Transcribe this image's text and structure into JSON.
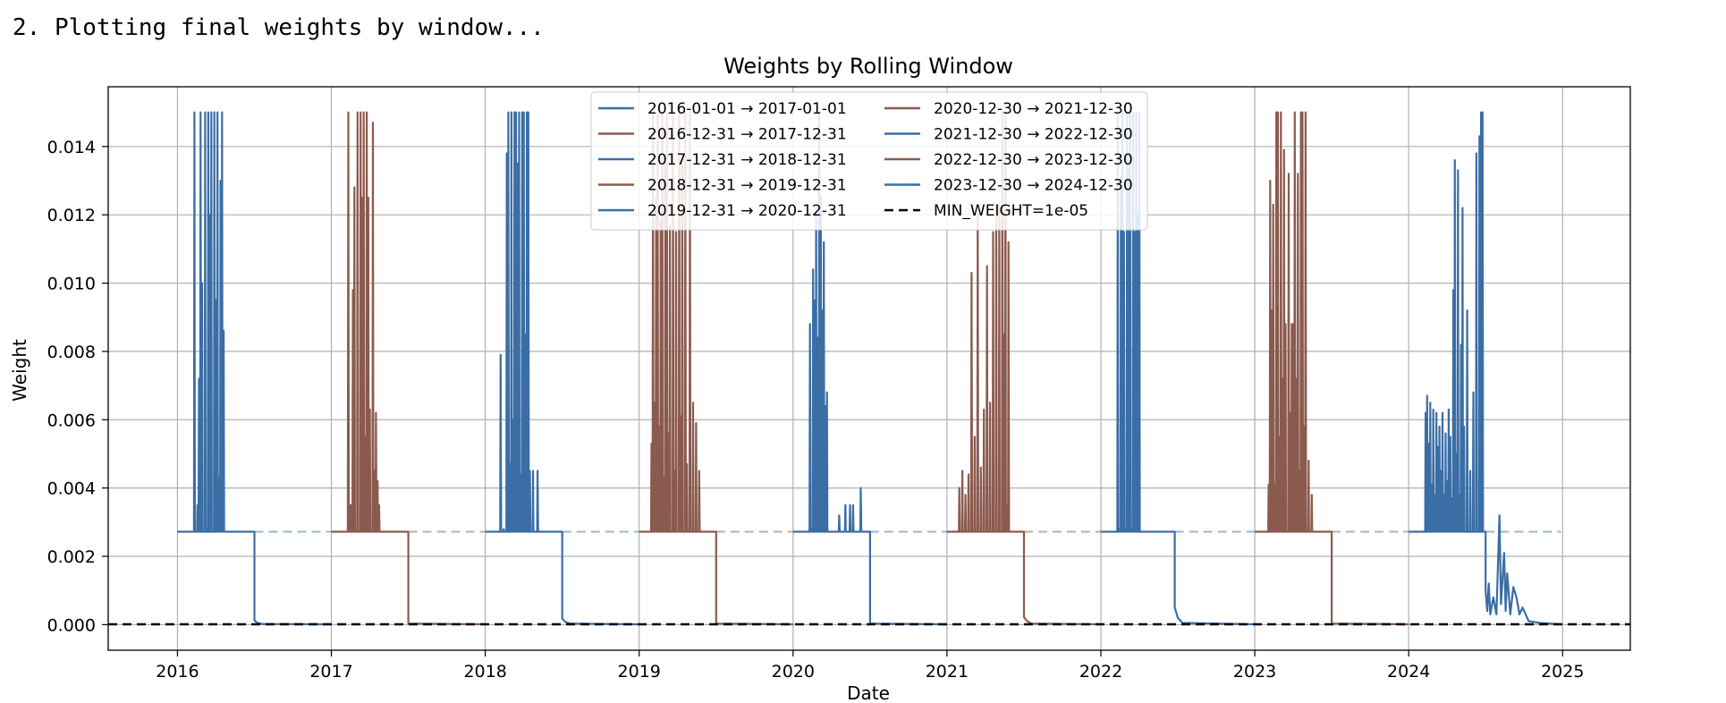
{
  "console": {
    "line": "2. Plotting final weights by window..."
  },
  "colors": {
    "blue": "#3a6ea5",
    "brown": "#8b5a4e",
    "min_weight": "#000000",
    "grid": "#b0b0b0"
  },
  "chart_data": {
    "type": "line",
    "title": "Weights by Rolling Window",
    "xlabel": "Date",
    "ylabel": "Weight",
    "xlim": [
      2015.55,
      2025.44
    ],
    "ylim": [
      -0.00075,
      0.01575
    ],
    "xticks": [
      2016,
      2017,
      2018,
      2019,
      2020,
      2021,
      2022,
      2023,
      2024,
      2025
    ],
    "xtick_labels": [
      "2016",
      "2017",
      "2018",
      "2019",
      "2020",
      "2021",
      "2022",
      "2023",
      "2024",
      "2025"
    ],
    "yticks": [
      0.0,
      0.002,
      0.004,
      0.006,
      0.008,
      0.01,
      0.012,
      0.014
    ],
    "ytick_labels": [
      "0.000",
      "0.002",
      "0.004",
      "0.006",
      "0.008",
      "0.010",
      "0.012",
      "0.014"
    ],
    "grid": true,
    "legend_position": "top-center",
    "legend_columns": 2,
    "min_weight": {
      "label": "MIN_WEIGHT=1e-05",
      "value": 1e-05
    },
    "series": [
      {
        "name": "2016-01-01 → 2017-01-01",
        "color": "#3a6ea5",
        "start": 2016.0,
        "end": 2017.0,
        "baseline": 0.00272,
        "active_range": [
          2016.1,
          2016.3
        ],
        "drop_at": 2016.5,
        "spikes": [
          [
            2016.11,
            0.015
          ],
          [
            2016.13,
            0.0035
          ],
          [
            2016.14,
            0.0072
          ],
          [
            2016.15,
            0.015
          ],
          [
            2016.16,
            0.01
          ],
          [
            2016.18,
            0.015
          ],
          [
            2016.19,
            0.0028
          ],
          [
            2016.2,
            0.015
          ],
          [
            2016.21,
            0.012
          ],
          [
            2016.22,
            0.015
          ],
          [
            2016.24,
            0.015
          ],
          [
            2016.25,
            0.0095
          ],
          [
            2016.26,
            0.015
          ],
          [
            2016.27,
            0.0043
          ],
          [
            2016.28,
            0.013
          ],
          [
            2016.29,
            0.015
          ],
          [
            2016.3,
            0.0086
          ]
        ],
        "tail": [
          [
            2016.5,
            0.00012
          ],
          [
            2016.52,
            5e-05
          ],
          [
            2016.55,
            2e-05
          ]
        ]
      },
      {
        "name": "2016-12-31 → 2017-12-31",
        "color": "#8b5a4e",
        "start": 2017.0,
        "end": 2018.0,
        "baseline": 0.00272,
        "active_range": [
          2017.1,
          2017.32
        ],
        "drop_at": 2017.5,
        "spikes": [
          [
            2017.11,
            0.015
          ],
          [
            2017.12,
            0.0035
          ],
          [
            2017.13,
            0.0035
          ],
          [
            2017.14,
            0.0098
          ],
          [
            2017.15,
            0.0128
          ],
          [
            2017.17,
            0.015
          ],
          [
            2017.19,
            0.015
          ],
          [
            2017.2,
            0.0125
          ],
          [
            2017.21,
            0.015
          ],
          [
            2017.22,
            0.0055
          ],
          [
            2017.23,
            0.015
          ],
          [
            2017.24,
            0.0125
          ],
          [
            2017.25,
            0.0063
          ],
          [
            2017.27,
            0.0147
          ],
          [
            2017.28,
            0.0045
          ],
          [
            2017.29,
            0.0062
          ],
          [
            2017.3,
            0.0042
          ],
          [
            2017.31,
            0.0035
          ]
        ],
        "tail": []
      },
      {
        "name": "2017-12-31 → 2018-12-31",
        "color": "#3a6ea5",
        "start": 2018.0,
        "end": 2019.0,
        "baseline": 0.00272,
        "active_range": [
          2018.1,
          2018.35
        ],
        "drop_at": 2018.5,
        "spikes": [
          [
            2018.1,
            0.0079
          ],
          [
            2018.12,
            0.0028
          ],
          [
            2018.14,
            0.0138
          ],
          [
            2018.15,
            0.015
          ],
          [
            2018.16,
            0.0047
          ],
          [
            2018.17,
            0.015
          ],
          [
            2018.18,
            0.006
          ],
          [
            2018.19,
            0.015
          ],
          [
            2018.2,
            0.015
          ],
          [
            2018.21,
            0.0135
          ],
          [
            2018.22,
            0.015
          ],
          [
            2018.23,
            0.0044
          ],
          [
            2018.24,
            0.015
          ],
          [
            2018.25,
            0.015
          ],
          [
            2018.26,
            0.0085
          ],
          [
            2018.27,
            0.015
          ],
          [
            2018.28,
            0.015
          ],
          [
            2018.29,
            0.0045
          ],
          [
            2018.31,
            0.0045
          ],
          [
            2018.34,
            0.0045
          ]
        ],
        "tail": [
          [
            2018.5,
            0.00018
          ],
          [
            2018.52,
            8e-05
          ],
          [
            2018.55,
            3e-05
          ]
        ]
      },
      {
        "name": "2018-12-31 → 2019-12-31",
        "color": "#8b5a4e",
        "start": 2019.0,
        "end": 2020.0,
        "baseline": 0.00272,
        "active_range": [
          2019.08,
          2019.4
        ],
        "drop_at": 2019.5,
        "spikes": [
          [
            2019.08,
            0.0053
          ],
          [
            2019.09,
            0.015
          ],
          [
            2019.1,
            0.0065
          ],
          [
            2019.11,
            0.0125
          ],
          [
            2019.12,
            0.015
          ],
          [
            2019.13,
            0.0058
          ],
          [
            2019.14,
            0.0118
          ],
          [
            2019.15,
            0.015
          ],
          [
            2019.16,
            0.0043
          ],
          [
            2019.17,
            0.0135
          ],
          [
            2019.18,
            0.015
          ],
          [
            2019.19,
            0.0056
          ],
          [
            2019.2,
            0.0117
          ],
          [
            2019.22,
            0.015
          ],
          [
            2019.23,
            0.0045
          ],
          [
            2019.24,
            0.0115
          ],
          [
            2019.26,
            0.015
          ],
          [
            2019.27,
            0.0061
          ],
          [
            2019.28,
            0.0135
          ],
          [
            2019.3,
            0.015
          ],
          [
            2019.31,
            0.0047
          ],
          [
            2019.33,
            0.015
          ],
          [
            2019.35,
            0.0065
          ],
          [
            2019.37,
            0.0059
          ],
          [
            2019.39,
            0.0045
          ]
        ],
        "tail": []
      },
      {
        "name": "2019-12-31 → 2020-12-31",
        "color": "#3a6ea5",
        "start": 2020.0,
        "end": 2021.0,
        "baseline": 0.00272,
        "active_range": [
          2020.1,
          2020.45
        ],
        "drop_at": 2020.5,
        "spikes": [
          [
            2020.11,
            0.0088
          ],
          [
            2020.12,
            0.0028
          ],
          [
            2020.13,
            0.0104
          ],
          [
            2020.14,
            0.0095
          ],
          [
            2020.15,
            0.0122
          ],
          [
            2020.16,
            0.0084
          ],
          [
            2020.17,
            0.015
          ],
          [
            2020.18,
            0.0125
          ],
          [
            2020.19,
            0.0092
          ],
          [
            2020.2,
            0.0112
          ],
          [
            2020.21,
            0.0064
          ],
          [
            2020.22,
            0.0068
          ],
          [
            2020.3,
            0.0032
          ],
          [
            2020.34,
            0.0035
          ],
          [
            2020.37,
            0.0035
          ],
          [
            2020.39,
            0.0035
          ],
          [
            2020.44,
            0.004
          ]
        ],
        "tail": []
      },
      {
        "name": "2020-12-30 → 2021-12-30",
        "color": "#8b5a4e",
        "start": 2021.0,
        "end": 2022.0,
        "baseline": 0.00272,
        "active_range": [
          2021.08,
          2021.4
        ],
        "drop_at": 2021.5,
        "spikes": [
          [
            2021.08,
            0.004
          ],
          [
            2021.1,
            0.0045
          ],
          [
            2021.12,
            0.0038
          ],
          [
            2021.14,
            0.0044
          ],
          [
            2021.16,
            0.0103
          ],
          [
            2021.18,
            0.0055
          ],
          [
            2021.2,
            0.0123
          ],
          [
            2021.22,
            0.0046
          ],
          [
            2021.24,
            0.0063
          ],
          [
            2021.26,
            0.0105
          ],
          [
            2021.28,
            0.0065
          ],
          [
            2021.3,
            0.0115
          ],
          [
            2021.32,
            0.0123
          ],
          [
            2021.34,
            0.0123
          ],
          [
            2021.36,
            0.015
          ],
          [
            2021.37,
            0.0085
          ],
          [
            2021.38,
            0.015
          ],
          [
            2021.39,
            0.0035
          ],
          [
            2021.4,
            0.0112
          ]
        ],
        "tail": [
          [
            2021.5,
            0.00022
          ],
          [
            2021.52,
            0.0001
          ],
          [
            2021.55,
            3e-05
          ]
        ]
      },
      {
        "name": "2021-12-30 → 2022-12-30",
        "color": "#3a6ea5",
        "start": 2022.0,
        "end": 2023.0,
        "baseline": 0.00272,
        "active_range": [
          2022.1,
          2022.26
        ],
        "drop_at": 2022.48,
        "spikes": [
          [
            2022.11,
            0.015
          ],
          [
            2022.12,
            0.0028
          ],
          [
            2022.13,
            0.0131
          ],
          [
            2022.14,
            0.015
          ],
          [
            2022.15,
            0.0115
          ],
          [
            2022.16,
            0.0028
          ],
          [
            2022.17,
            0.015
          ],
          [
            2022.18,
            0.0133
          ],
          [
            2022.19,
            0.015
          ],
          [
            2022.2,
            0.0028
          ],
          [
            2022.21,
            0.015
          ],
          [
            2022.22,
            0.0115
          ],
          [
            2022.23,
            0.015
          ],
          [
            2022.24,
            0.012
          ],
          [
            2022.25,
            0.015
          ]
        ],
        "tail": [
          [
            2022.48,
            0.0005
          ],
          [
            2022.5,
            0.0002
          ],
          [
            2022.53,
            5e-05
          ]
        ]
      },
      {
        "name": "2022-12-30 → 2023-12-30",
        "color": "#8b5a4e",
        "start": 2023.0,
        "end": 2024.0,
        "baseline": 0.00272,
        "active_range": [
          2023.09,
          2023.4
        ],
        "drop_at": 2023.5,
        "spikes": [
          [
            2023.09,
            0.0041
          ],
          [
            2023.1,
            0.013
          ],
          [
            2023.11,
            0.0092
          ],
          [
            2023.12,
            0.0123
          ],
          [
            2023.13,
            0.0041
          ],
          [
            2023.14,
            0.015
          ],
          [
            2023.15,
            0.015
          ],
          [
            2023.16,
            0.0055
          ],
          [
            2023.17,
            0.015
          ],
          [
            2023.18,
            0.0072
          ],
          [
            2023.19,
            0.0139
          ],
          [
            2023.2,
            0.0088
          ],
          [
            2023.22,
            0.0132
          ],
          [
            2023.23,
            0.0062
          ],
          [
            2023.24,
            0.0088
          ],
          [
            2023.25,
            0.0088
          ],
          [
            2023.26,
            0.015
          ],
          [
            2023.27,
            0.0072
          ],
          [
            2023.28,
            0.0132
          ],
          [
            2023.29,
            0.0045
          ],
          [
            2023.3,
            0.015
          ],
          [
            2023.31,
            0.015
          ],
          [
            2023.32,
            0.0058
          ],
          [
            2023.33,
            0.015
          ],
          [
            2023.35,
            0.0048
          ],
          [
            2023.37,
            0.0038
          ]
        ],
        "tail": []
      },
      {
        "name": "2023-12-30 → 2024-12-30",
        "color": "#3a6ea5",
        "start": 2024.0,
        "end": 2024.99,
        "baseline": 0.00272,
        "active_range": [
          2024.1,
          2024.48
        ],
        "drop_at": 2024.5,
        "spikes": [
          [
            2024.11,
            0.0062
          ],
          [
            2024.12,
            0.0067
          ],
          [
            2024.13,
            0.0053
          ],
          [
            2024.14,
            0.0065
          ],
          [
            2024.15,
            0.0041
          ],
          [
            2024.16,
            0.0063
          ],
          [
            2024.17,
            0.0038
          ],
          [
            2024.18,
            0.0062
          ],
          [
            2024.19,
            0.0052
          ],
          [
            2024.2,
            0.0058
          ],
          [
            2024.21,
            0.0045
          ],
          [
            2024.22,
            0.0062
          ],
          [
            2024.23,
            0.0038
          ],
          [
            2024.24,
            0.0056
          ],
          [
            2024.25,
            0.0042
          ],
          [
            2024.26,
            0.0063
          ],
          [
            2024.27,
            0.0055
          ],
          [
            2024.28,
            0.0037
          ],
          [
            2024.29,
            0.0098
          ],
          [
            2024.3,
            0.0136
          ],
          [
            2024.31,
            0.005
          ],
          [
            2024.32,
            0.0133
          ],
          [
            2024.33,
            0.0038
          ],
          [
            2024.34,
            0.0082
          ],
          [
            2024.35,
            0.0122
          ],
          [
            2024.36,
            0.0058
          ],
          [
            2024.38,
            0.0092
          ],
          [
            2024.4,
            0.0045
          ],
          [
            2024.42,
            0.0068
          ],
          [
            2024.44,
            0.0138
          ],
          [
            2024.46,
            0.0143
          ],
          [
            2024.47,
            0.015
          ],
          [
            2024.48,
            0.015
          ]
        ],
        "tail": [
          [
            2024.5,
            0.001
          ],
          [
            2024.51,
            0.0004
          ],
          [
            2024.52,
            0.0012
          ],
          [
            2024.53,
            0.0003
          ],
          [
            2024.55,
            0.0008
          ],
          [
            2024.57,
            0.0003
          ],
          [
            2024.59,
            0.0032
          ],
          [
            2024.6,
            0.0006
          ],
          [
            2024.62,
            0.0021
          ],
          [
            2024.63,
            0.0004
          ],
          [
            2024.64,
            0.0015
          ],
          [
            2024.66,
            0.0003
          ],
          [
            2024.68,
            0.0011
          ],
          [
            2024.7,
            0.0008
          ],
          [
            2024.72,
            0.0003
          ],
          [
            2024.74,
            0.0005
          ],
          [
            2024.78,
            0.0001
          ],
          [
            2024.85,
            5e-05
          ]
        ]
      }
    ]
  }
}
